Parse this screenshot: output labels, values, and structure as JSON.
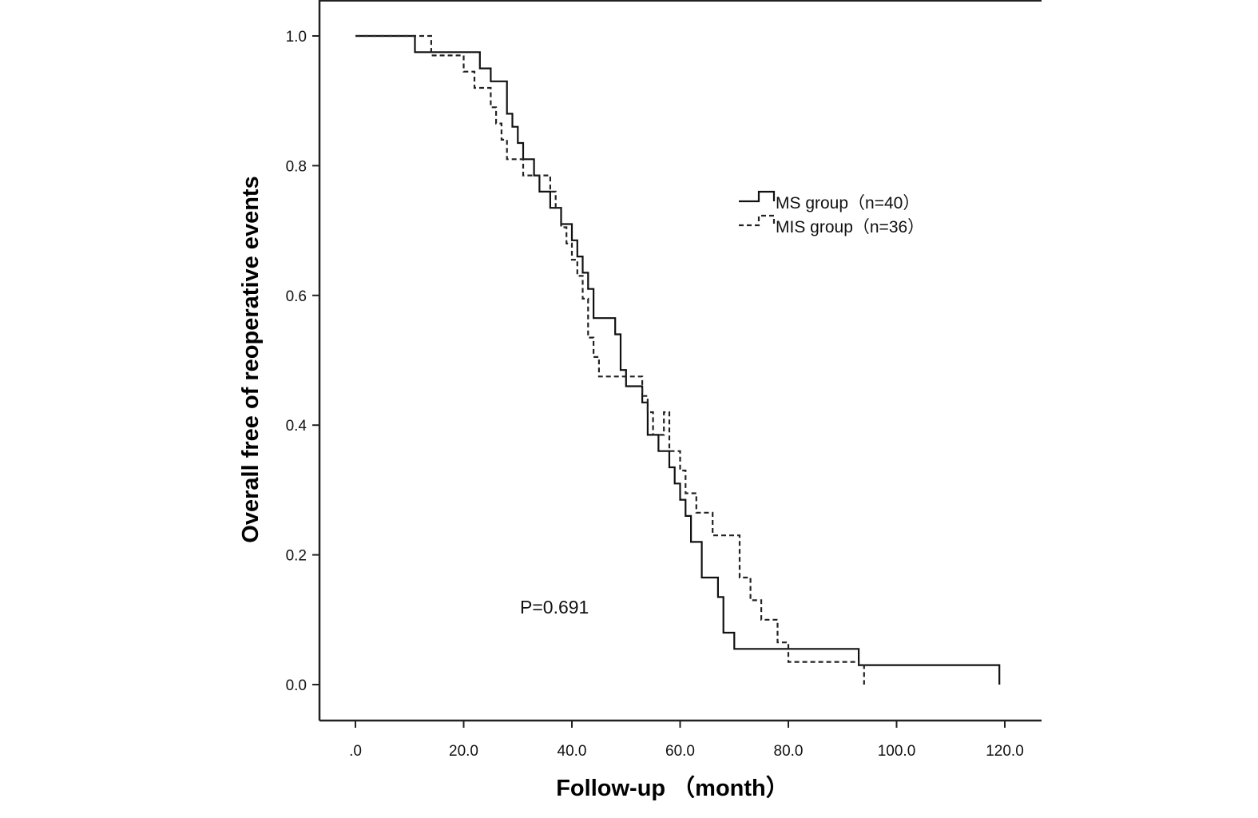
{
  "chart_data": {
    "type": "line",
    "title": "",
    "xlabel": "Follow-up （month）",
    "ylabel": "Overall free of reoperative events",
    "xlim": [
      -6.5,
      126
    ],
    "ylim": [
      -0.055,
      1.055
    ],
    "x_ticks": [
      0,
      20,
      40,
      60,
      80,
      100,
      120
    ],
    "x_tick_labels": [
      ".0",
      "20.0",
      "40.0",
      "60.0",
      "80.0",
      "100.0",
      "120.0"
    ],
    "y_ticks": [
      0,
      0.2,
      0.4,
      0.6,
      0.8,
      1.0
    ],
    "y_tick_labels": [
      "0.0",
      "0.2",
      "0.4",
      "0.6",
      "0.8",
      "1.0"
    ],
    "grid": false,
    "legend_position": "upper-right",
    "annotation": "P=0.691",
    "series": [
      {
        "name": "MS group（n=40）",
        "style": "solid",
        "color": "#111111",
        "points": [
          [
            0,
            1.0
          ],
          [
            11,
            1.0
          ],
          [
            11,
            0.975
          ],
          [
            23,
            0.975
          ],
          [
            23,
            0.95
          ],
          [
            25,
            0.95
          ],
          [
            25,
            0.93
          ],
          [
            28,
            0.93
          ],
          [
            28,
            0.88
          ],
          [
            29,
            0.88
          ],
          [
            29,
            0.86
          ],
          [
            30,
            0.86
          ],
          [
            30,
            0.835
          ],
          [
            31,
            0.835
          ],
          [
            31,
            0.81
          ],
          [
            33,
            0.81
          ],
          [
            33,
            0.785
          ],
          [
            34,
            0.785
          ],
          [
            34,
            0.76
          ],
          [
            36,
            0.76
          ],
          [
            36,
            0.735
          ],
          [
            38,
            0.735
          ],
          [
            38,
            0.71
          ],
          [
            40,
            0.71
          ],
          [
            40,
            0.685
          ],
          [
            41,
            0.685
          ],
          [
            41,
            0.66
          ],
          [
            42,
            0.66
          ],
          [
            42,
            0.635
          ],
          [
            43,
            0.635
          ],
          [
            43,
            0.61
          ],
          [
            44,
            0.61
          ],
          [
            44,
            0.565
          ],
          [
            48,
            0.565
          ],
          [
            48,
            0.54
          ],
          [
            49,
            0.54
          ],
          [
            49,
            0.485
          ],
          [
            50,
            0.485
          ],
          [
            50,
            0.46
          ],
          [
            53,
            0.46
          ],
          [
            53,
            0.435
          ],
          [
            54,
            0.435
          ],
          [
            54,
            0.385
          ],
          [
            56,
            0.385
          ],
          [
            56,
            0.36
          ],
          [
            58,
            0.36
          ],
          [
            58,
            0.335
          ],
          [
            59,
            0.335
          ],
          [
            59,
            0.31
          ],
          [
            60,
            0.31
          ],
          [
            60,
            0.285
          ],
          [
            61,
            0.285
          ],
          [
            61,
            0.26
          ],
          [
            62,
            0.26
          ],
          [
            62,
            0.22
          ],
          [
            64,
            0.22
          ],
          [
            64,
            0.165
          ],
          [
            67,
            0.165
          ],
          [
            67,
            0.135
          ],
          [
            68,
            0.135
          ],
          [
            68,
            0.08
          ],
          [
            70,
            0.08
          ],
          [
            70,
            0.055
          ],
          [
            93,
            0.055
          ],
          [
            93,
            0.03
          ],
          [
            119,
            0.03
          ],
          [
            119,
            0.0
          ]
        ]
      },
      {
        "name": "MIS group（n=36）",
        "style": "dashed",
        "color": "#222222",
        "points": [
          [
            0,
            1.0
          ],
          [
            14,
            1.0
          ],
          [
            14,
            0.97
          ],
          [
            20,
            0.97
          ],
          [
            20,
            0.945
          ],
          [
            22,
            0.945
          ],
          [
            22,
            0.92
          ],
          [
            25,
            0.92
          ],
          [
            25,
            0.89
          ],
          [
            26,
            0.89
          ],
          [
            26,
            0.865
          ],
          [
            27,
            0.865
          ],
          [
            27,
            0.84
          ],
          [
            28,
            0.84
          ],
          [
            28,
            0.81
          ],
          [
            31,
            0.81
          ],
          [
            31,
            0.785
          ],
          [
            36,
            0.785
          ],
          [
            36,
            0.76
          ],
          [
            37,
            0.76
          ],
          [
            37,
            0.735
          ],
          [
            38,
            0.735
          ],
          [
            38,
            0.705
          ],
          [
            39,
            0.705
          ],
          [
            39,
            0.68
          ],
          [
            40,
            0.68
          ],
          [
            40,
            0.655
          ],
          [
            41,
            0.655
          ],
          [
            41,
            0.63
          ],
          [
            42,
            0.63
          ],
          [
            42,
            0.595
          ],
          [
            43,
            0.595
          ],
          [
            43,
            0.535
          ],
          [
            44,
            0.535
          ],
          [
            44,
            0.505
          ],
          [
            45,
            0.505
          ],
          [
            45,
            0.475
          ],
          [
            53,
            0.475
          ],
          [
            53,
            0.445
          ],
          [
            54,
            0.445
          ],
          [
            54,
            0.42
          ],
          [
            55,
            0.42
          ],
          [
            55,
            0.385
          ],
          [
            57,
            0.385
          ],
          [
            57,
            0.42
          ],
          [
            58,
            0.42
          ],
          [
            58,
            0.36
          ],
          [
            60,
            0.36
          ],
          [
            60,
            0.33
          ],
          [
            61,
            0.33
          ],
          [
            61,
            0.295
          ],
          [
            63,
            0.295
          ],
          [
            63,
            0.265
          ],
          [
            66,
            0.265
          ],
          [
            66,
            0.23
          ],
          [
            71,
            0.23
          ],
          [
            71,
            0.165
          ],
          [
            73,
            0.165
          ],
          [
            73,
            0.13
          ],
          [
            75,
            0.13
          ],
          [
            75,
            0.1
          ],
          [
            78,
            0.1
          ],
          [
            78,
            0.065
          ],
          [
            80,
            0.065
          ],
          [
            80,
            0.035
          ],
          [
            93,
            0.035
          ],
          [
            93,
            0.03
          ],
          [
            94,
            0.03
          ],
          [
            94,
            0.0
          ]
        ]
      }
    ]
  }
}
